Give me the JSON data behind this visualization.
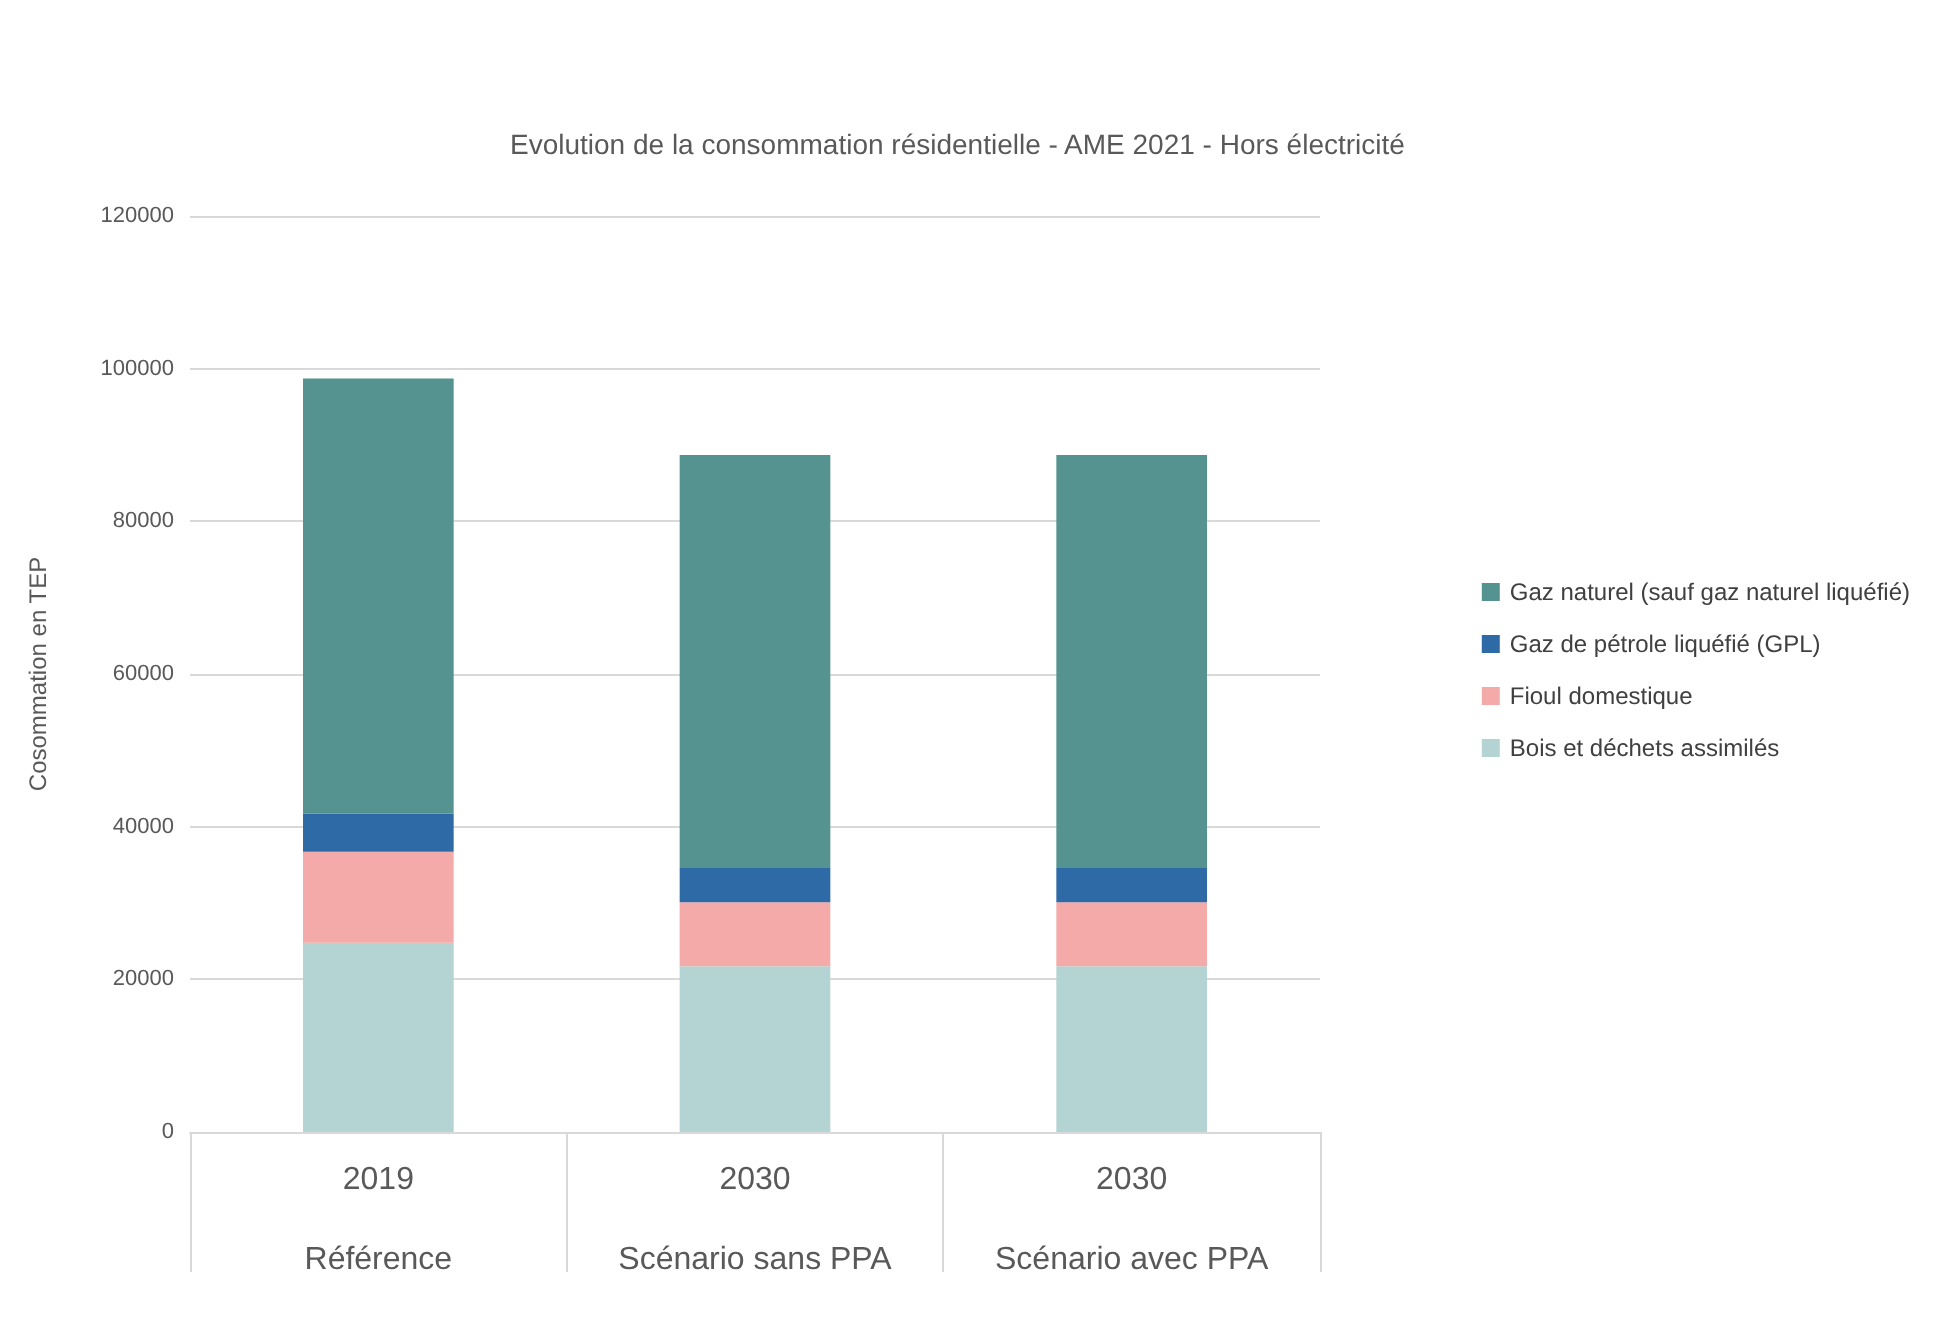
{
  "chart_data": {
    "type": "bar",
    "title": "Evolution de la consommation résidentielle - AME 2021 - Hors électricité",
    "ylabel": "Cosommation en TEP",
    "categories": [
      "2019\n\nRéférence",
      "2030\n\nScénario sans PPA",
      "2030\n\nScénario avec PPA"
    ],
    "series": [
      {
        "name": "Bois et déchets assimilés",
        "color": "#b3d4d3",
        "values": [
          24800,
          21700,
          21700
        ]
      },
      {
        "name": "Fioul domestique",
        "color": "#f4aaa9",
        "values": [
          11900,
          8400,
          8400
        ]
      },
      {
        "name": "Gaz de pétrole liquéfié (GPL)",
        "color": "#2e6aa6",
        "values": [
          5000,
          4500,
          4500
        ]
      },
      {
        "name": "Gaz naturel (sauf gaz naturel liquéfié)",
        "color": "#559390",
        "values": [
          57000,
          54100,
          54100
        ]
      }
    ],
    "stacked": true,
    "ylim": [
      0,
      120000
    ],
    "yticks": [
      0,
      20000,
      40000,
      60000,
      80000,
      100000,
      120000
    ],
    "grid": "y",
    "legend": "right"
  }
}
